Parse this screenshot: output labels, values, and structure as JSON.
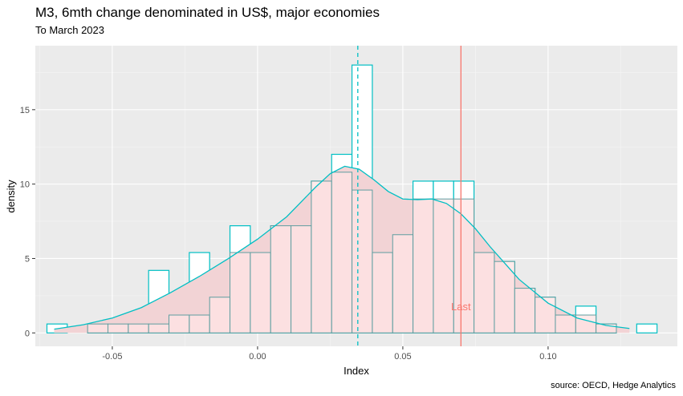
{
  "chart_data": {
    "type": "histogram",
    "title": "M3, 6mth change denominated in US$, major economies",
    "subtitle": "To March 2023",
    "caption": "source: OECD, Hedge Analytics",
    "xlabel": "Index",
    "ylabel": "density",
    "xlim": [
      -0.0765,
      0.1445
    ],
    "ylim": [
      -0.9,
      19.3
    ],
    "x_ticks": [
      -0.05,
      0.0,
      0.05,
      0.1
    ],
    "x_tick_labels": [
      "-0.05",
      "0.00",
      "0.05",
      "0.10"
    ],
    "y_ticks": [
      0,
      5,
      10,
      15
    ],
    "y_tick_labels": [
      "0",
      "5",
      "10",
      "15"
    ],
    "bin_width": 0.007,
    "bins_start": -0.0725,
    "series": [
      {
        "role": "latest",
        "color": "#00BFC4",
        "values": [
          0.6,
          0.0,
          0.6,
          0.6,
          0.6,
          4.2,
          1.2,
          5.4,
          2.4,
          7.2,
          5.4,
          7.2,
          7.2,
          10.2,
          12.0,
          18.0,
          5.4,
          6.6,
          10.2,
          10.2,
          10.2,
          5.4,
          4.8,
          3.0,
          2.4,
          1.2,
          1.8,
          0.6,
          0.0,
          0.6
        ]
      },
      {
        "role": "history",
        "color": "#F8766D",
        "values": [
          0.0,
          0.0,
          0.6,
          0.6,
          0.6,
          0.6,
          1.2,
          1.2,
          2.4,
          5.4,
          5.4,
          7.2,
          7.2,
          10.2,
          10.8,
          9.6,
          5.4,
          6.6,
          9.0,
          9.0,
          9.0,
          5.4,
          4.8,
          3.0,
          2.4,
          1.2,
          1.2,
          0.6,
          0.0,
          0.0
        ]
      }
    ],
    "density_curve": {
      "color": "#00BFC4",
      "x": [
        -0.07,
        -0.06,
        -0.05,
        -0.04,
        -0.03,
        -0.02,
        -0.01,
        0.0,
        0.01,
        0.02,
        0.025,
        0.03,
        0.035,
        0.04,
        0.045,
        0.05,
        0.055,
        0.06,
        0.065,
        0.07,
        0.075,
        0.08,
        0.09,
        0.1,
        0.11,
        0.12,
        0.128
      ],
      "y": [
        0.25,
        0.55,
        1.0,
        1.7,
        2.7,
        3.8,
        5.0,
        6.3,
        7.8,
        9.8,
        10.7,
        11.2,
        11.0,
        10.3,
        9.5,
        9.0,
        8.95,
        9.0,
        8.7,
        8.0,
        7.0,
        5.8,
        3.6,
        2.0,
        1.0,
        0.5,
        0.3
      ]
    },
    "fill_colors": {
      "history_bar": "#FFE4E4",
      "density_area": "#F2D3D5",
      "latest_bar": "#FFFFFF"
    },
    "vlines": [
      {
        "x": 0.0345,
        "style": "dashed",
        "color": "#00BFC4"
      },
      {
        "x": 0.07,
        "style": "solid",
        "color": "#F8766D"
      }
    ],
    "annotations": [
      {
        "text": "Last",
        "x": 0.07,
        "y": 1.8,
        "color": "#F8766D"
      }
    ],
    "grid": true,
    "background": "#EBEBEB",
    "legend": "none"
  }
}
